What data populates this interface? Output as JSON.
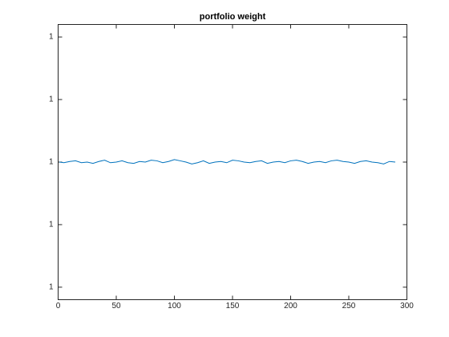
{
  "chart_data": {
    "type": "line",
    "title": "portfolio weight",
    "x": [
      1,
      5,
      10,
      15,
      20,
      25,
      30,
      35,
      40,
      45,
      50,
      55,
      60,
      65,
      70,
      75,
      80,
      85,
      90,
      95,
      100,
      105,
      110,
      115,
      120,
      125,
      130,
      135,
      140,
      145,
      150,
      155,
      160,
      165,
      170,
      175,
      180,
      185,
      190,
      195,
      200,
      205,
      210,
      215,
      220,
      225,
      230,
      235,
      240,
      245,
      250,
      255,
      260,
      265,
      270,
      275,
      280,
      285,
      290
    ],
    "series": [
      {
        "name": "portfolio weight",
        "color": "#0072bd",
        "values": [
          1,
          0.9999998,
          1.0000002,
          1.0000004,
          0.9999998,
          1,
          0.9999996,
          1.0000002,
          1.0000006,
          0.9999998,
          1,
          1.0000004,
          0.9999998,
          0.9999996,
          1.0000002,
          1,
          1.0000006,
          1.0000004,
          0.9999998,
          1.0000002,
          1.0000008,
          1.0000004,
          1,
          0.9999994,
          0.9999998,
          1.0000004,
          0.9999996,
          1,
          1.0000002,
          0.9999998,
          1.0000006,
          1.0000004,
          1,
          0.9999998,
          1.0000002,
          1.0000004,
          0.9999996,
          1,
          1.0000002,
          0.9999998,
          1.0000004,
          1.0000006,
          1.0000002,
          0.9999996,
          1,
          1.0000002,
          0.9999998,
          1.0000004,
          1.0000006,
          1.0000002,
          1,
          0.9999996,
          1.0000002,
          1.0000004,
          1,
          0.9999998,
          0.9999994,
          1.0000002,
          1
        ]
      }
    ],
    "xlim": [
      0,
      300
    ],
    "xticks": [
      0,
      50,
      100,
      150,
      200,
      250,
      300
    ],
    "ylim": [
      0.999956,
      1.000044
    ],
    "yticks": [
      {
        "value": 0.99996,
        "label": "1"
      },
      {
        "value": 0.99998,
        "label": "1"
      },
      1,
      {
        "value": 1.00002,
        "label": "1"
      },
      {
        "value": 1.00004,
        "label": "1"
      }
    ]
  }
}
